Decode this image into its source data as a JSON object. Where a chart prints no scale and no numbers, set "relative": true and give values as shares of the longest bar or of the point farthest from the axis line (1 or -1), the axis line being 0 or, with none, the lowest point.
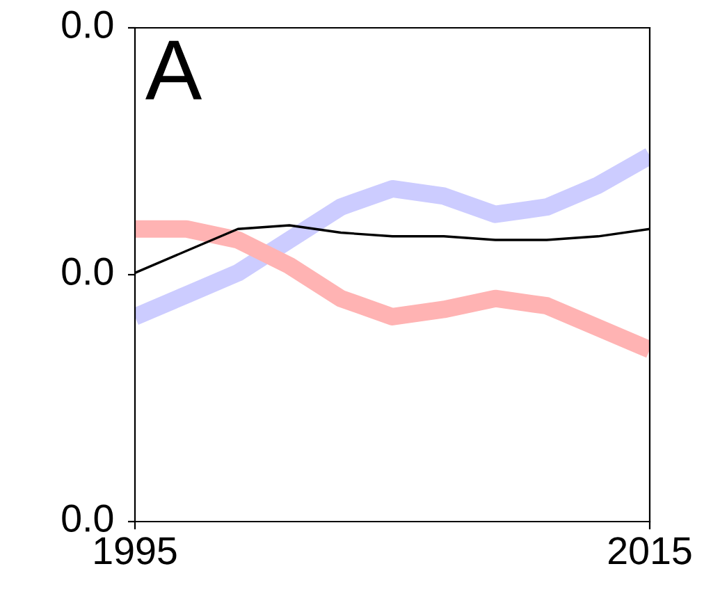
{
  "chart_data": {
    "type": "line",
    "relative": true,
    "annotations": [
      "A",
      "0.0",
      "0.0",
      "0.0"
    ],
    "x": [
      1995,
      1997,
      1999,
      2001,
      2003,
      2005,
      2007,
      2009,
      2011,
      2013,
      2015
    ],
    "series": [
      {
        "color": "#ccccff",
        "values": [
          0.56,
          0.62,
          0.68,
          0.77,
          0.86,
          0.91,
          0.89,
          0.84,
          0.86,
          0.92,
          1
        ]
      },
      {
        "color": "#ffb3b3",
        "values": [
          0.8,
          0.8,
          0.77,
          0.7,
          0.61,
          0.56,
          0.58,
          0.61,
          0.59,
          0.53,
          0.47
        ]
      },
      {
        "color": "#000000",
        "values": [
          0.68,
          0.74,
          0.8,
          0.81,
          0.79,
          0.78,
          0.78,
          0.77,
          0.77,
          0.78,
          0.8
        ]
      }
    ],
    "xlim": [
      1995,
      2015
    ],
    "xticks": [
      1995,
      2015
    ],
    "grid": false,
    "legend": false,
    "marker": "none",
    "line_style": "solid"
  }
}
